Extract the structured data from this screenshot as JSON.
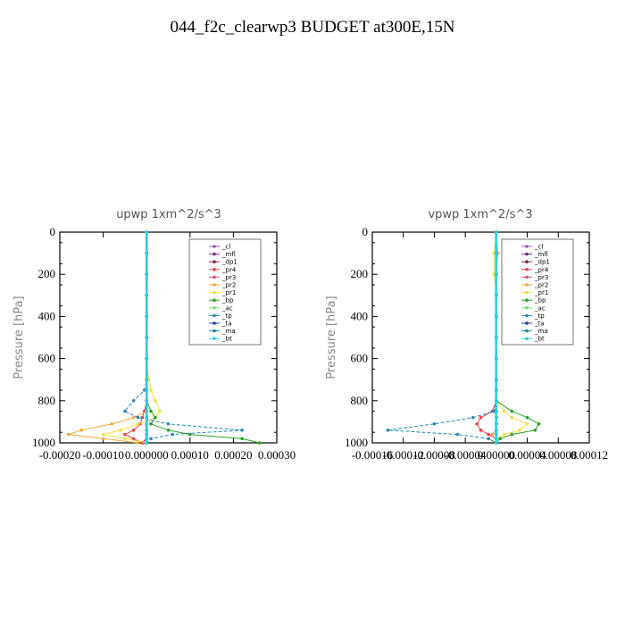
{
  "title": "044_f2c_clearwp3  BUDGET at300E,15N",
  "chart_data": [
    {
      "type": "line",
      "title": "upwp   1xm^2/s^3",
      "ylabel": "Pressure [hPa]",
      "xlim": [
        -0.0002,
        0.0003
      ],
      "ylim": [
        1000,
        0
      ],
      "x_ticks": [
        "-0.00020",
        "-0.00010",
        "0.000000",
        "0.00010",
        "0.00020",
        "0.00030"
      ],
      "y_ticks": [
        "0",
        "200",
        "400",
        "600",
        "800",
        "1000"
      ],
      "legend_position": "top-right",
      "pressure": [
        0,
        100,
        200,
        300,
        400,
        500,
        600,
        700,
        750,
        800,
        850,
        880,
        910,
        940,
        960,
        980,
        1000
      ],
      "series": [
        {
          "name": "_cl",
          "color": "#9b59b6",
          "values": [
            0,
            0,
            0,
            0,
            0,
            0,
            0,
            0,
            0,
            0,
            0,
            0,
            0,
            0,
            0,
            0,
            0
          ]
        },
        {
          "name": "_mfl",
          "color": "#7b2d8b",
          "values": [
            0,
            0,
            0,
            0,
            0,
            0,
            0,
            0,
            0,
            0,
            0,
            0,
            0,
            0,
            0,
            0,
            0
          ]
        },
        {
          "name": "_dp1",
          "color": "#8b1a4a",
          "values": [
            0,
            0,
            0,
            0,
            0,
            0,
            0,
            0,
            0,
            0,
            0,
            0,
            0,
            0,
            0,
            0,
            -1e-05
          ]
        },
        {
          "name": "_pr4",
          "color": "#e8414e",
          "values": [
            0,
            0,
            0,
            0,
            0,
            0,
            0,
            0,
            0,
            0,
            -5e-06,
            -1e-05,
            -1.5e-05,
            -3e-05,
            -5e-05,
            -3e-05,
            -1e-05
          ]
        },
        {
          "name": "_pr3",
          "color": "#e05070",
          "values": [
            0,
            0,
            0,
            0,
            0,
            0,
            0,
            0,
            0,
            0,
            0,
            0,
            0,
            0,
            0,
            0,
            0
          ]
        },
        {
          "name": "_pr2",
          "color": "#f4a742",
          "values": [
            0,
            0,
            0,
            0,
            0,
            0,
            0,
            0,
            0,
            0,
            0,
            -3e-05,
            -8e-05,
            -0.00015,
            -0.00018,
            -0.0001,
            -2e-05
          ]
        },
        {
          "name": "_pr1",
          "color": "#f0e040",
          "values": [
            0,
            0,
            0,
            0,
            0,
            0,
            0,
            5e-06,
            1e-05,
            2e-05,
            3e-05,
            2e-05,
            -2e-05,
            -6e-05,
            -0.0001,
            -5e-05,
            0
          ]
        },
        {
          "name": "_bp",
          "color": "#28a028",
          "values": [
            0,
            0,
            0,
            0,
            0,
            0,
            0,
            0,
            0,
            0,
            1e-05,
            2e-05,
            1e-05,
            5e-05,
            0.0001,
            0.00022,
            0.00026
          ]
        },
        {
          "name": "_ac",
          "color": "#70e070",
          "values": [
            0,
            0,
            0,
            0,
            0,
            0,
            0,
            0,
            0,
            0,
            0,
            0,
            0,
            0,
            0,
            0,
            0
          ]
        },
        {
          "name": "_tp",
          "color": "#2a8ab0",
          "values": [
            0,
            0,
            0,
            0,
            0,
            0,
            0,
            0,
            -5e-06,
            -3e-05,
            -5e-05,
            -2e-05,
            5e-05,
            0.00022,
            6e-05,
            1e-05,
            0
          ]
        },
        {
          "name": "_ta",
          "color": "#2040a0",
          "values": [
            0,
            0,
            0,
            0,
            0,
            0,
            0,
            0,
            0,
            0,
            0,
            0,
            0,
            0,
            0,
            0,
            0
          ]
        },
        {
          "name": "_ma",
          "color": "#1a8aa0",
          "values": [
            0,
            0,
            0,
            0,
            0,
            0,
            0,
            0,
            0,
            0,
            0,
            0,
            0,
            0,
            0,
            0,
            0
          ]
        },
        {
          "name": "_bt",
          "color": "#30d0e0",
          "values": [
            0,
            0,
            0,
            0,
            0,
            0,
            0,
            0,
            0,
            0,
            0,
            0,
            0,
            0,
            0,
            0,
            0
          ]
        }
      ]
    },
    {
      "type": "line",
      "title": "vpwp   1xm^2/s^3",
      "ylabel": "Pressure [hPa]",
      "xlim": [
        -0.00016,
        0.00012
      ],
      "ylim": [
        1000,
        0
      ],
      "x_ticks": [
        "-0.00016",
        "-0.00012",
        "-0.00008",
        "-0.00004",
        "0.00000",
        "0.00004",
        "0.00008",
        "0.00012"
      ],
      "y_ticks": [
        "0",
        "200",
        "400",
        "600",
        "800",
        "1000"
      ],
      "legend_position": "top-right",
      "pressure": [
        0,
        100,
        200,
        300,
        400,
        500,
        600,
        700,
        750,
        800,
        850,
        880,
        910,
        940,
        960,
        980,
        1000
      ],
      "series": [
        {
          "name": "_cl",
          "color": "#9b59b6",
          "values": [
            0,
            0,
            0,
            0,
            0,
            0,
            0,
            0,
            0,
            0,
            0,
            0,
            0,
            0,
            0,
            0,
            0
          ]
        },
        {
          "name": "_mfl",
          "color": "#7b2d8b",
          "values": [
            0,
            0,
            0,
            0,
            0,
            0,
            0,
            0,
            0,
            0,
            0,
            0,
            0,
            0,
            0,
            0,
            0
          ]
        },
        {
          "name": "_dp1",
          "color": "#8b1a4a",
          "values": [
            0,
            0,
            0,
            0,
            0,
            0,
            0,
            0,
            0,
            0,
            0,
            0,
            0,
            0,
            0,
            0,
            0
          ]
        },
        {
          "name": "_pr4",
          "color": "#e8414e",
          "values": [
            0,
            0,
            0,
            0,
            0,
            0,
            0,
            0,
            0,
            0,
            -5e-06,
            -2e-05,
            -2.5e-05,
            -2e-05,
            -1e-05,
            0,
            0
          ]
        },
        {
          "name": "_pr3",
          "color": "#e05070",
          "values": [
            0,
            0,
            0,
            0,
            0,
            0,
            0,
            0,
            0,
            0,
            0,
            0,
            0,
            0,
            0,
            0,
            0
          ]
        },
        {
          "name": "_pr2",
          "color": "#f4a742",
          "values": [
            0,
            2e-06,
            0,
            0,
            0,
            0,
            0,
            0,
            0,
            0,
            0,
            0,
            0,
            0,
            -5e-06,
            -1e-05,
            0
          ]
        },
        {
          "name": "_pr1",
          "color": "#f0e040",
          "values": [
            0,
            -3e-06,
            -3e-06,
            0,
            0,
            0,
            0,
            0,
            0,
            0,
            1e-05,
            2e-05,
            4e-05,
            3e-05,
            1e-05,
            0,
            0
          ]
        },
        {
          "name": "_bp",
          "color": "#28a028",
          "values": [
            0,
            0,
            0,
            0,
            0,
            0,
            0,
            0,
            0,
            0,
            2e-05,
            4e-05,
            5.5e-05,
            5e-05,
            2e-05,
            5e-06,
            0
          ]
        },
        {
          "name": "_ac",
          "color": "#70e070",
          "values": [
            0,
            0,
            0,
            0,
            0,
            0,
            0,
            0,
            0,
            0,
            0,
            0,
            0,
            0,
            0,
            0,
            0
          ]
        },
        {
          "name": "_tp",
          "color": "#2a8ab0",
          "values": [
            0,
            0,
            0,
            0,
            0,
            0,
            0,
            0,
            0,
            0,
            -3e-06,
            -3e-05,
            -8e-05,
            -0.00014,
            -5e-05,
            -1e-05,
            0
          ]
        },
        {
          "name": "_ta",
          "color": "#2040a0",
          "values": [
            0,
            0,
            0,
            0,
            0,
            0,
            0,
            0,
            0,
            0,
            0,
            0,
            0,
            0,
            0,
            0,
            0
          ]
        },
        {
          "name": "_ma",
          "color": "#1a8aa0",
          "values": [
            0,
            0,
            0,
            0,
            0,
            0,
            0,
            0,
            0,
            0,
            0,
            0,
            0,
            0,
            0,
            0,
            0
          ]
        },
        {
          "name": "_bt",
          "color": "#30d0e0",
          "values": [
            0,
            0,
            0,
            0,
            0,
            0,
            0,
            0,
            0,
            0,
            0,
            0,
            0,
            0,
            0,
            0,
            0
          ]
        }
      ]
    }
  ]
}
